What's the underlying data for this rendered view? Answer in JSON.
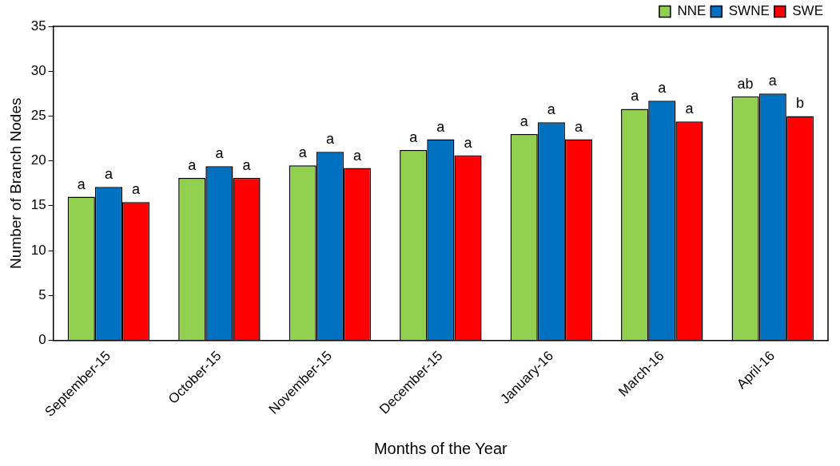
{
  "chart_data": {
    "type": "bar",
    "xlabel": "Months of the Year",
    "ylabel": "Number of Branch Nodes",
    "categories": [
      "September-15",
      "October-15",
      "November-15",
      "December-15",
      "January-16",
      "March-16",
      "April-16"
    ],
    "series": [
      {
        "name": "NNE",
        "color": "#92d050",
        "values": [
          16.0,
          18.1,
          19.5,
          21.2,
          23.0,
          25.8,
          27.2
        ],
        "value_labels": [
          "a",
          "a",
          "a",
          "a",
          "a",
          "a",
          "ab"
        ]
      },
      {
        "name": "SWNE",
        "color": "#0070c0",
        "values": [
          17.1,
          19.4,
          21.0,
          22.4,
          24.3,
          26.7,
          27.5
        ],
        "value_labels": [
          "a",
          "a",
          "a",
          "a",
          "a",
          "a",
          "a"
        ]
      },
      {
        "name": "SWE",
        "color": "#ff0000",
        "values": [
          15.4,
          18.1,
          19.2,
          20.6,
          22.4,
          24.4,
          25.0
        ],
        "value_labels": [
          "a",
          "a",
          "a",
          "a",
          "a",
          "a",
          "b"
        ]
      }
    ],
    "ylim": [
      0,
      35
    ],
    "yticks": [
      0,
      5,
      10,
      15,
      20,
      25,
      30,
      35
    ],
    "grid": false,
    "legend": "top right"
  }
}
